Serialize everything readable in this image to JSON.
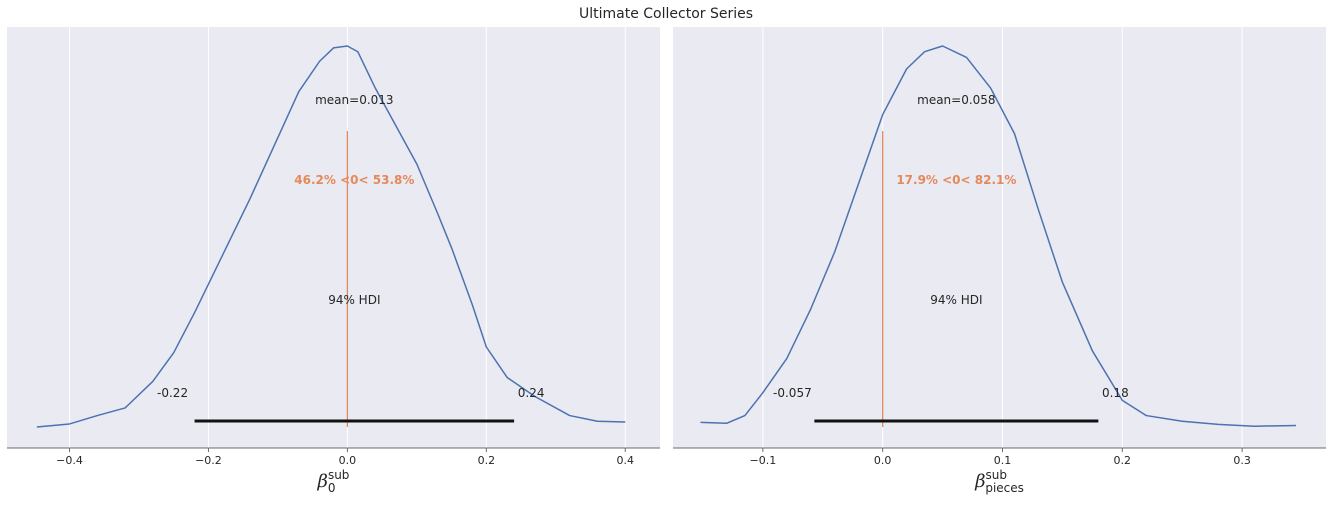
{
  "title": "Ultimate Collector Series",
  "colors": {
    "background": "#eaeaf2",
    "grid": "#ffffff",
    "density": "#4c72b0",
    "reference": "#e5895b",
    "hdi": "#111111",
    "text": "#262626"
  },
  "chart_data": [
    {
      "type": "line",
      "xlim": [
        -0.49,
        0.45
      ],
      "xticks": [
        -0.4,
        -0.2,
        0.0,
        0.2,
        0.4
      ],
      "xtick_labels": [
        "−0.4",
        "−0.2",
        "0.0",
        "0.2",
        "0.4"
      ],
      "xlabel_symbol": "β",
      "xlabel_subscript": "0",
      "xlabel_superscript": "sub",
      "mean_label": "mean=0.013",
      "ref_value": 0.0,
      "ref_label": "46.2% <0< 53.8%",
      "hdi_label": "94% HDI",
      "hdi": [
        -0.22,
        0.24
      ],
      "hdi_low_label": "-0.22",
      "hdi_high_label": "0.24",
      "density_x": [
        -0.447,
        -0.4,
        -0.36,
        -0.32,
        -0.28,
        -0.25,
        -0.22,
        -0.18,
        -0.14,
        -0.1,
        -0.07,
        -0.04,
        -0.02,
        0.0,
        0.015,
        0.04,
        0.07,
        0.1,
        0.13,
        0.15,
        0.18,
        0.2,
        0.23,
        0.27,
        0.32,
        0.36,
        0.4
      ],
      "density_y": [
        0.0,
        0.008,
        0.03,
        0.05,
        0.12,
        0.195,
        0.3,
        0.45,
        0.6,
        0.76,
        0.88,
        0.96,
        0.995,
        1.0,
        0.985,
        0.89,
        0.79,
        0.69,
        0.56,
        0.47,
        0.32,
        0.21,
        0.13,
        0.08,
        0.03,
        0.015,
        0.013
      ]
    },
    {
      "type": "line",
      "xlim": [
        -0.175,
        0.37
      ],
      "xticks": [
        -0.1,
        0.0,
        0.1,
        0.2,
        0.3
      ],
      "xtick_labels": [
        "−0.1",
        "0.0",
        "0.1",
        "0.2",
        "0.3"
      ],
      "xlabel_symbol": "β",
      "xlabel_subscript": "pieces",
      "xlabel_superscript": "sub",
      "mean_label": "mean=0.058",
      "ref_value": 0.0,
      "ref_label": "17.9% <0< 82.1%",
      "hdi_label": "94% HDI",
      "hdi": [
        -0.057,
        0.18
      ],
      "hdi_low_label": "-0.057",
      "hdi_high_label": "0.18",
      "density_x": [
        -0.152,
        -0.13,
        -0.115,
        -0.1,
        -0.08,
        -0.06,
        -0.04,
        -0.02,
        0.0,
        0.02,
        0.035,
        0.05,
        0.07,
        0.09,
        0.11,
        0.13,
        0.15,
        0.175,
        0.2,
        0.22,
        0.25,
        0.28,
        0.31,
        0.345
      ],
      "density_y": [
        0.012,
        0.01,
        0.03,
        0.09,
        0.18,
        0.31,
        0.46,
        0.64,
        0.82,
        0.94,
        0.985,
        1.0,
        0.97,
        0.89,
        0.77,
        0.57,
        0.38,
        0.2,
        0.07,
        0.03,
        0.015,
        0.007,
        0.002,
        0.004
      ]
    }
  ]
}
